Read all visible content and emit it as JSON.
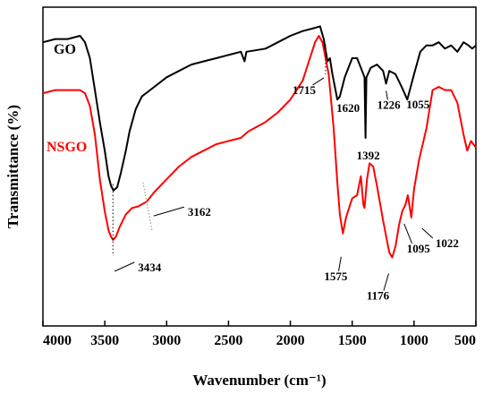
{
  "chart_data": {
    "type": "line",
    "xlabel": "Wavenumber (cm⁻¹)",
    "ylabel": "Transmittance (%)",
    "xlim": [
      4000,
      500
    ],
    "x_reversed": true,
    "y_tick_labels_shown": false,
    "x_ticks": [
      4000,
      3500,
      3000,
      2500,
      2000,
      1500,
      1000,
      500
    ],
    "grid": false,
    "ylim": [
      0,
      100
    ],
    "series": [
      {
        "name": "GO",
        "color": "#000000",
        "points": [
          [
            4000,
            89
          ],
          [
            3900,
            90
          ],
          [
            3800,
            90
          ],
          [
            3700,
            91
          ],
          [
            3660,
            89
          ],
          [
            3620,
            84
          ],
          [
            3580,
            74
          ],
          [
            3540,
            64
          ],
          [
            3500,
            55
          ],
          [
            3470,
            47
          ],
          [
            3450,
            44
          ],
          [
            3430,
            42.5
          ],
          [
            3400,
            43.5
          ],
          [
            3370,
            48
          ],
          [
            3330,
            55
          ],
          [
            3300,
            61
          ],
          [
            3250,
            68
          ],
          [
            3200,
            72
          ],
          [
            3100,
            75
          ],
          [
            3000,
            78
          ],
          [
            2900,
            80
          ],
          [
            2800,
            82
          ],
          [
            2700,
            83
          ],
          [
            2600,
            84
          ],
          [
            2500,
            85
          ],
          [
            2400,
            86
          ],
          [
            2370,
            83
          ],
          [
            2355,
            86
          ],
          [
            2200,
            87
          ],
          [
            2100,
            89
          ],
          [
            2000,
            91
          ],
          [
            1900,
            92.5
          ],
          [
            1800,
            93.5
          ],
          [
            1760,
            94
          ],
          [
            1730,
            90
          ],
          [
            1700,
            83
          ],
          [
            1680,
            84
          ],
          [
            1660,
            79
          ],
          [
            1620,
            71
          ],
          [
            1600,
            72
          ],
          [
            1560,
            78
          ],
          [
            1500,
            84
          ],
          [
            1460,
            84
          ],
          [
            1420,
            80
          ],
          [
            1400,
            78
          ],
          [
            1392,
            59
          ],
          [
            1385,
            78
          ],
          [
            1350,
            81
          ],
          [
            1300,
            82
          ],
          [
            1250,
            80
          ],
          [
            1226,
            76
          ],
          [
            1200,
            80
          ],
          [
            1150,
            79
          ],
          [
            1100,
            75
          ],
          [
            1055,
            71
          ],
          [
            1000,
            79
          ],
          [
            950,
            86
          ],
          [
            900,
            88
          ],
          [
            850,
            88
          ],
          [
            800,
            89
          ],
          [
            750,
            87
          ],
          [
            700,
            88
          ],
          [
            650,
            86
          ],
          [
            600,
            89
          ],
          [
            560,
            88
          ],
          [
            530,
            87
          ],
          [
            500,
            88
          ]
        ],
        "labels": [
          {
            "x": 1620,
            "text": "1620"
          },
          {
            "x": 1392,
            "text": "1392"
          },
          {
            "x": 1226,
            "text": "1226"
          },
          {
            "x": 1055,
            "text": "1055"
          }
        ]
      },
      {
        "name": "NSGO",
        "color": "#ff0000",
        "points": [
          [
            4000,
            73
          ],
          [
            3900,
            74
          ],
          [
            3800,
            74
          ],
          [
            3700,
            74
          ],
          [
            3660,
            73
          ],
          [
            3620,
            69
          ],
          [
            3580,
            60
          ],
          [
            3540,
            46
          ],
          [
            3500,
            36
          ],
          [
            3470,
            30
          ],
          [
            3450,
            28
          ],
          [
            3434,
            27
          ],
          [
            3410,
            28
          ],
          [
            3380,
            31
          ],
          [
            3330,
            35
          ],
          [
            3280,
            37
          ],
          [
            3230,
            37.5
          ],
          [
            3162,
            39
          ],
          [
            3100,
            42
          ],
          [
            3000,
            46
          ],
          [
            2900,
            50
          ],
          [
            2800,
            53
          ],
          [
            2700,
            55
          ],
          [
            2600,
            57
          ],
          [
            2500,
            58
          ],
          [
            2400,
            59
          ],
          [
            2340,
            61
          ],
          [
            2200,
            64
          ],
          [
            2100,
            67
          ],
          [
            2000,
            71
          ],
          [
            1900,
            77
          ],
          [
            1850,
            83
          ],
          [
            1800,
            89
          ],
          [
            1770,
            91
          ],
          [
            1740,
            89
          ],
          [
            1715,
            84
          ],
          [
            1690,
            79
          ],
          [
            1650,
            62
          ],
          [
            1620,
            45
          ],
          [
            1600,
            35
          ],
          [
            1575,
            29
          ],
          [
            1550,
            34
          ],
          [
            1500,
            40
          ],
          [
            1460,
            41
          ],
          [
            1430,
            47
          ],
          [
            1410,
            38
          ],
          [
            1400,
            37
          ],
          [
            1380,
            46
          ],
          [
            1360,
            51
          ],
          [
            1330,
            50
          ],
          [
            1300,
            44
          ],
          [
            1250,
            33
          ],
          [
            1200,
            23
          ],
          [
            1176,
            21.5
          ],
          [
            1150,
            25
          ],
          [
            1120,
            32
          ],
          [
            1095,
            36
          ],
          [
            1070,
            38
          ],
          [
            1050,
            41
          ],
          [
            1022,
            34
          ],
          [
            1000,
            43
          ],
          [
            960,
            52
          ],
          [
            900,
            62
          ],
          [
            850,
            74
          ],
          [
            800,
            75
          ],
          [
            750,
            74
          ],
          [
            700,
            74
          ],
          [
            650,
            70
          ],
          [
            600,
            60
          ],
          [
            570,
            55
          ],
          [
            540,
            58
          ],
          [
            500,
            56
          ]
        ],
        "labels": [
          {
            "x": 3162,
            "text": "3162"
          },
          {
            "x": 3434,
            "text": "3434"
          },
          {
            "x": 1715,
            "text": "1715"
          },
          {
            "x": 1575,
            "text": "1575"
          },
          {
            "x": 1176,
            "text": "1176"
          },
          {
            "x": 1095,
            "text": "1095"
          },
          {
            "x": 1022,
            "text": "1022"
          }
        ]
      }
    ]
  }
}
